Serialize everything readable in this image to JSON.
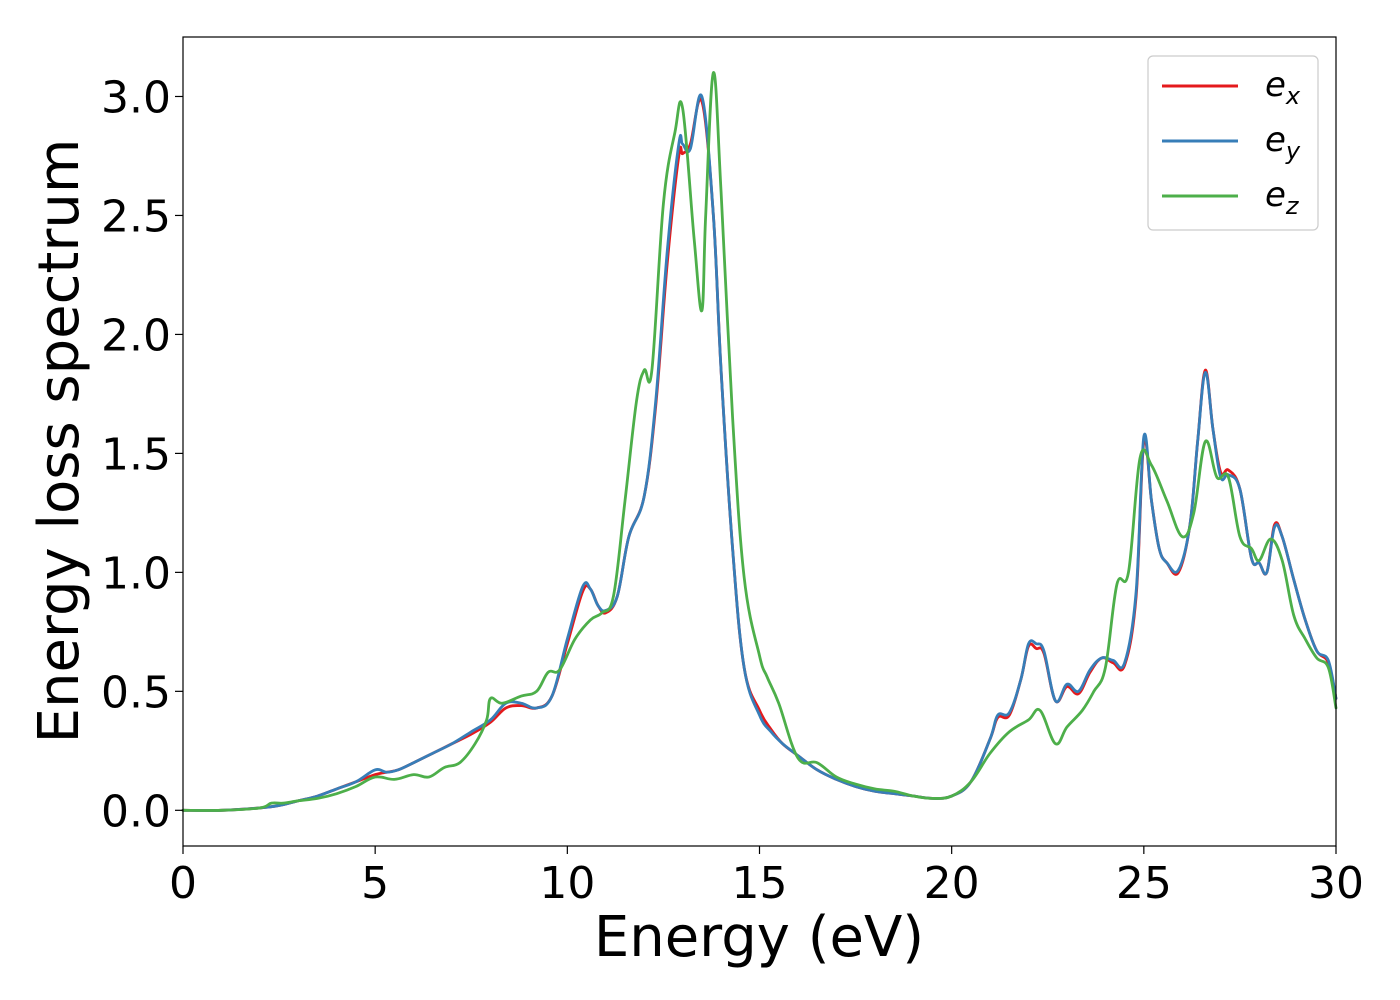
{
  "chart_data": {
    "type": "line",
    "title": "",
    "xlabel": "Energy (eV)",
    "ylabel": "Energy loss spectrum",
    "xlim": [
      0,
      30
    ],
    "ylim": [
      -0.15,
      3.25
    ],
    "xticks": [
      0,
      5,
      10,
      15,
      20,
      25,
      30
    ],
    "xtick_labels": [
      "0",
      "5",
      "10",
      "15",
      "20",
      "25",
      "30"
    ],
    "yticks": [
      0.0,
      0.5,
      1.0,
      1.5,
      2.0,
      2.5,
      3.0
    ],
    "ytick_labels": [
      "0.0",
      "0.5",
      "1.0",
      "1.5",
      "2.0",
      "2.5",
      "3.0"
    ],
    "grid": false,
    "legend_position": "top-right",
    "series": [
      {
        "name": "e_x",
        "legend_base": "e",
        "legend_sub": "x",
        "color": "#e41a1c",
        "x": [
          0,
          1,
          2,
          2.5,
          3,
          3.5,
          4,
          4.5,
          5,
          5.3,
          5.6,
          6,
          6.5,
          7,
          7.5,
          8,
          8.4,
          8.8,
          9.2,
          9.6,
          10,
          10.4,
          10.6,
          10.8,
          11,
          11.3,
          11.6,
          12,
          12.3,
          12.6,
          12.9,
          13,
          13.2,
          13.5,
          13.8,
          14,
          14.3,
          14.6,
          15,
          15.3,
          15.6,
          16,
          16.5,
          17,
          17.5,
          18,
          18.5,
          19,
          19.5,
          20,
          20.5,
          21,
          21.2,
          21.5,
          21.8,
          22,
          22.2,
          22.4,
          22.7,
          23,
          23.3,
          23.6,
          23.9,
          24.2,
          24.5,
          24.8,
          25,
          25.2,
          25.4,
          25.6,
          25.9,
          26.2,
          26.4,
          26.6,
          26.8,
          27,
          27.2,
          27.5,
          27.8,
          28,
          28.2,
          28.4,
          28.6,
          28.9,
          29.2,
          29.5,
          29.8,
          30
        ],
        "y": [
          0.0,
          0.0,
          0.01,
          0.02,
          0.04,
          0.06,
          0.09,
          0.12,
          0.15,
          0.16,
          0.17,
          0.2,
          0.24,
          0.28,
          0.32,
          0.37,
          0.43,
          0.44,
          0.43,
          0.48,
          0.7,
          0.92,
          0.93,
          0.86,
          0.83,
          0.9,
          1.15,
          1.32,
          1.7,
          2.3,
          2.75,
          2.76,
          2.8,
          2.98,
          2.5,
          1.85,
          1.1,
          0.6,
          0.42,
          0.34,
          0.28,
          0.23,
          0.17,
          0.13,
          0.1,
          0.08,
          0.07,
          0.06,
          0.05,
          0.06,
          0.12,
          0.3,
          0.39,
          0.4,
          0.55,
          0.69,
          0.68,
          0.66,
          0.46,
          0.52,
          0.49,
          0.58,
          0.64,
          0.62,
          0.61,
          0.9,
          1.55,
          1.3,
          1.1,
          1.04,
          1.0,
          1.2,
          1.55,
          1.85,
          1.6,
          1.42,
          1.43,
          1.35,
          1.06,
          1.04,
          1.0,
          1.2,
          1.15,
          0.97,
          0.8,
          0.67,
          0.62,
          0.47
        ]
      },
      {
        "name": "e_y",
        "legend_base": "e",
        "legend_sub": "y",
        "color": "#377eb8",
        "x": [
          0,
          1,
          2,
          2.5,
          3,
          3.5,
          4,
          4.5,
          5,
          5.3,
          5.6,
          6,
          6.5,
          7,
          7.5,
          8,
          8.4,
          8.8,
          9.2,
          9.6,
          10,
          10.4,
          10.6,
          10.8,
          11,
          11.3,
          11.6,
          12,
          12.3,
          12.6,
          12.9,
          13,
          13.2,
          13.5,
          13.8,
          14,
          14.3,
          14.6,
          15,
          15.3,
          15.6,
          16,
          16.5,
          17,
          17.5,
          18,
          18.5,
          19,
          19.5,
          20,
          20.5,
          21,
          21.2,
          21.5,
          21.8,
          22,
          22.2,
          22.4,
          22.7,
          23,
          23.3,
          23.6,
          23.9,
          24.2,
          24.5,
          24.8,
          25,
          25.2,
          25.4,
          25.6,
          25.9,
          26.2,
          26.4,
          26.6,
          26.8,
          27,
          27.2,
          27.5,
          27.8,
          28,
          28.2,
          28.4,
          28.6,
          28.9,
          29.2,
          29.5,
          29.8,
          30
        ],
        "y": [
          0.0,
          0.0,
          0.01,
          0.02,
          0.04,
          0.06,
          0.09,
          0.12,
          0.17,
          0.16,
          0.17,
          0.2,
          0.24,
          0.28,
          0.33,
          0.38,
          0.45,
          0.45,
          0.43,
          0.48,
          0.72,
          0.94,
          0.93,
          0.86,
          0.84,
          0.9,
          1.15,
          1.32,
          1.72,
          2.35,
          2.8,
          2.8,
          2.78,
          3.0,
          2.5,
          1.85,
          1.1,
          0.6,
          0.4,
          0.33,
          0.28,
          0.23,
          0.17,
          0.13,
          0.1,
          0.08,
          0.07,
          0.06,
          0.05,
          0.06,
          0.12,
          0.3,
          0.4,
          0.41,
          0.55,
          0.7,
          0.7,
          0.67,
          0.46,
          0.53,
          0.5,
          0.59,
          0.64,
          0.63,
          0.62,
          0.92,
          1.57,
          1.3,
          1.1,
          1.04,
          1.01,
          1.2,
          1.55,
          1.84,
          1.6,
          1.4,
          1.41,
          1.35,
          1.06,
          1.04,
          1.0,
          1.19,
          1.15,
          0.97,
          0.8,
          0.67,
          0.63,
          0.47
        ]
      },
      {
        "name": "e_z",
        "legend_base": "e",
        "legend_sub": "z",
        "color": "#4daf4a",
        "x": [
          0,
          1,
          2,
          2.3,
          2.6,
          3,
          3.5,
          4,
          4.5,
          5,
          5.5,
          6,
          6.4,
          6.8,
          7.2,
          7.6,
          7.9,
          8,
          8.3,
          8.8,
          9.2,
          9.5,
          9.8,
          10.2,
          10.6,
          10.9,
          11.2,
          11.5,
          11.8,
          12,
          12.2,
          12.5,
          12.8,
          13,
          13.3,
          13.5,
          13.6,
          13.8,
          14,
          14.3,
          14.6,
          15,
          15.2,
          15.5,
          16,
          16.5,
          17,
          17.5,
          18,
          18.5,
          19,
          19.5,
          20,
          20.5,
          21,
          21.5,
          22,
          22.3,
          22.7,
          23,
          23.4,
          23.7,
          24,
          24.3,
          24.6,
          24.9,
          25.2,
          25.6,
          26,
          26.3,
          26.6,
          26.9,
          27.2,
          27.5,
          27.8,
          28,
          28.3,
          28.6,
          28.9,
          29.2,
          29.5,
          29.8,
          30
        ],
        "y": [
          0.0,
          0.0,
          0.01,
          0.03,
          0.03,
          0.04,
          0.05,
          0.07,
          0.1,
          0.14,
          0.13,
          0.15,
          0.14,
          0.18,
          0.2,
          0.28,
          0.38,
          0.47,
          0.45,
          0.48,
          0.5,
          0.58,
          0.59,
          0.72,
          0.8,
          0.83,
          0.9,
          1.3,
          1.72,
          1.85,
          1.85,
          2.55,
          2.85,
          2.95,
          2.4,
          2.1,
          2.5,
          3.1,
          2.6,
          1.65,
          0.98,
          0.65,
          0.56,
          0.45,
          0.22,
          0.2,
          0.14,
          0.11,
          0.09,
          0.08,
          0.06,
          0.05,
          0.06,
          0.12,
          0.24,
          0.33,
          0.38,
          0.42,
          0.28,
          0.35,
          0.42,
          0.5,
          0.6,
          0.95,
          1.0,
          1.48,
          1.45,
          1.3,
          1.15,
          1.25,
          1.55,
          1.4,
          1.4,
          1.15,
          1.1,
          1.05,
          1.14,
          1.05,
          0.82,
          0.72,
          0.64,
          0.6,
          0.43
        ]
      }
    ]
  }
}
